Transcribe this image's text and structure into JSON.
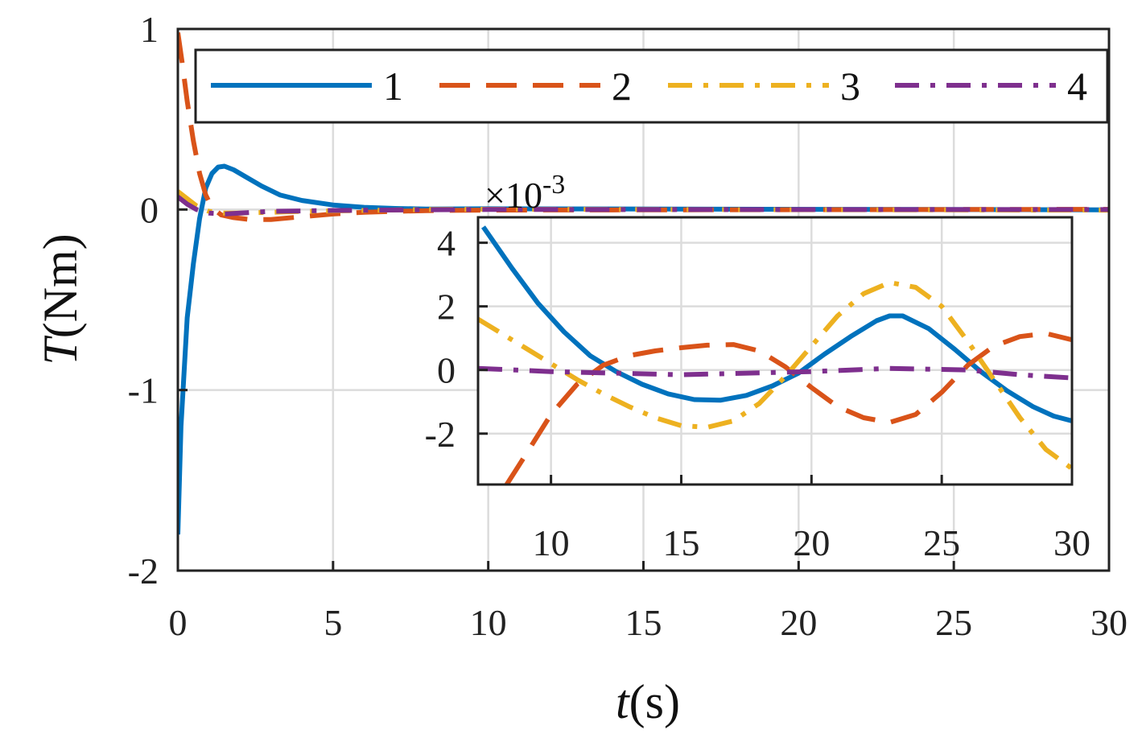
{
  "chart_data": [
    {
      "id": "main",
      "type": "line",
      "title": "",
      "xlabel_italic": "t",
      "xlabel_unit": "(s)",
      "ylabel_italic": "T",
      "ylabel_unit": "(Nm)",
      "xlim": [
        0,
        30
      ],
      "ylim": [
        -2,
        1
      ],
      "xticks": [
        0,
        5,
        10,
        15,
        20,
        25,
        30
      ],
      "yticks": [
        -2,
        -1,
        0,
        1
      ],
      "grid": true,
      "legend": {
        "placement": "top",
        "entries": [
          "1",
          "2",
          "3",
          "4"
        ]
      },
      "series": [
        {
          "name": "1",
          "color": "#0072BD",
          "dash": "solid",
          "x": [
            0,
            0.1,
            0.3,
            0.5,
            0.7,
            0.9,
            1.1,
            1.3,
            1.5,
            1.8,
            2.2,
            2.7,
            3.3,
            4,
            5,
            6,
            7,
            8,
            10,
            30
          ],
          "y": [
            -1.8,
            -1.2,
            -0.6,
            -0.3,
            -0.05,
            0.12,
            0.2,
            0.235,
            0.24,
            0.22,
            0.18,
            0.13,
            0.08,
            0.05,
            0.025,
            0.012,
            0.006,
            0.003,
            0.004,
            -0.0015
          ]
        },
        {
          "name": "2",
          "color": "#D95319",
          "dash": "dashed",
          "x": [
            0,
            0.15,
            0.3,
            0.5,
            0.7,
            0.9,
            1.1,
            1.4,
            1.8,
            2.3,
            3,
            4,
            5,
            6,
            7,
            8,
            10,
            30
          ],
          "y": [
            0.98,
            0.8,
            0.6,
            0.38,
            0.2,
            0.08,
            0.01,
            -0.03,
            -0.045,
            -0.055,
            -0.055,
            -0.04,
            -0.025,
            -0.015,
            -0.01,
            -0.006,
            -0.003,
            0.001
          ]
        },
        {
          "name": "3",
          "color": "#EDB120",
          "dash": "dashdot",
          "x": [
            0,
            0.3,
            0.6,
            1,
            1.5,
            2,
            3,
            4,
            6,
            8,
            10,
            30
          ],
          "y": [
            0.1,
            0.06,
            0.02,
            -0.01,
            -0.02,
            -0.02,
            -0.015,
            -0.01,
            -0.005,
            0,
            0.0016,
            -0.0033
          ]
        },
        {
          "name": "4",
          "color": "#7E2F8E",
          "dash": "dashdot",
          "x": [
            0,
            0.3,
            0.6,
            1,
            1.5,
            2,
            3,
            5,
            8,
            10,
            30
          ],
          "y": [
            0.07,
            0.03,
            0.0,
            -0.02,
            -0.025,
            -0.02,
            -0.01,
            -0.005,
            -0.001,
            0.0001,
            -0.0001
          ]
        }
      ]
    },
    {
      "id": "inset",
      "type": "line",
      "scale_exponent": "×10",
      "scale_power": "-3",
      "xlim": [
        7.2,
        30
      ],
      "ylim": [
        -3.6,
        4.8
      ],
      "xticks": [
        10,
        15,
        20,
        25,
        30
      ],
      "yticks": [
        -2,
        0,
        2,
        4
      ],
      "grid": true,
      "series": [
        {
          "name": "1",
          "color": "#0072BD",
          "dash": "solid",
          "x": [
            7.4,
            8.5,
            9.5,
            10.5,
            11.5,
            12.5,
            13.5,
            14.5,
            15.5,
            16.5,
            17.5,
            18.5,
            19.5,
            20.5,
            21.5,
            22.5,
            23,
            23.5,
            24.5,
            25.5,
            26.5,
            27.5,
            28.5,
            29.3,
            30
          ],
          "y": [
            4.5,
            3.2,
            2.1,
            1.2,
            0.45,
            -0.05,
            -0.45,
            -0.75,
            -0.93,
            -0.95,
            -0.8,
            -0.5,
            -0.1,
            0.5,
            1.05,
            1.55,
            1.7,
            1.7,
            1.3,
            0.65,
            -0.05,
            -0.65,
            -1.15,
            -1.45,
            -1.6
          ]
        },
        {
          "name": "2",
          "color": "#D95319",
          "dash": "dashed",
          "x": [
            8.3,
            9,
            10,
            11,
            12,
            13,
            14,
            15,
            16,
            17,
            18,
            19,
            20,
            21,
            22,
            23,
            24,
            25,
            26,
            27,
            28,
            29,
            30
          ],
          "y": [
            -3.6,
            -2.7,
            -1.4,
            -0.45,
            0.15,
            0.45,
            0.6,
            0.7,
            0.78,
            0.8,
            0.6,
            0.1,
            -0.55,
            -1.15,
            -1.5,
            -1.65,
            -1.4,
            -0.7,
            0.15,
            0.75,
            1.05,
            1.15,
            0.95
          ]
        },
        {
          "name": "3",
          "color": "#EDB120",
          "dash": "dashdot",
          "x": [
            7.2,
            8,
            9,
            10,
            11,
            12,
            13,
            14,
            15,
            16,
            17,
            18,
            19,
            20,
            21,
            22,
            23,
            24,
            25,
            26,
            27,
            28,
            29,
            30
          ],
          "y": [
            1.6,
            1.2,
            0.7,
            0.2,
            -0.3,
            -0.75,
            -1.15,
            -1.5,
            -1.75,
            -1.8,
            -1.6,
            -1.05,
            -0.2,
            0.75,
            1.7,
            2.4,
            2.75,
            2.6,
            2.0,
            0.9,
            -0.3,
            -1.5,
            -2.5,
            -3.1
          ]
        },
        {
          "name": "4",
          "color": "#7E2F8E",
          "dash": "dashdot",
          "x": [
            7.2,
            10,
            15,
            20,
            23,
            26,
            28,
            30
          ],
          "y": [
            0.05,
            -0.05,
            -0.15,
            -0.05,
            0.05,
            0.0,
            -0.15,
            -0.25
          ]
        }
      ]
    }
  ]
}
